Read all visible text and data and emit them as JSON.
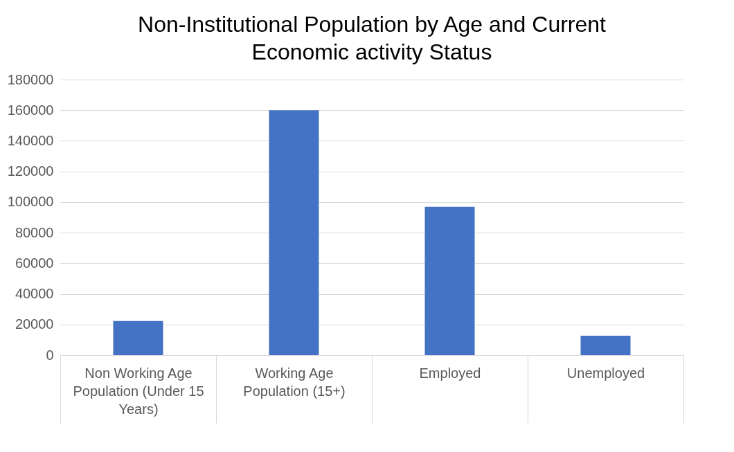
{
  "chart_data": {
    "type": "bar",
    "title": "Non-Institutional Population by Age and Current Economic activity Status",
    "categories": [
      "Non Working Age Population (Under 15 Years)",
      "Working Age Population (15+)",
      "Employed",
      "Unemployed"
    ],
    "values": [
      22300,
      160000,
      96900,
      12700
    ],
    "color": "#4472c4",
    "ylim": [
      0,
      180000
    ],
    "yticks": [
      0,
      20000,
      40000,
      60000,
      80000,
      100000,
      120000,
      140000,
      160000,
      180000
    ],
    "grid": "y"
  }
}
